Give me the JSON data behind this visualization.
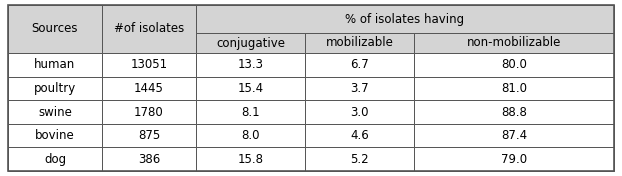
{
  "header_top": "% of isolates having",
  "header_left1": "Sources",
  "header_left2": "#of isolates",
  "sub_headers": [
    "conjugative",
    "mobilizable",
    "non-mobilizable"
  ],
  "rows": [
    [
      "human",
      "13051",
      "13.3",
      "6.7",
      "80.0"
    ],
    [
      "poultry",
      "1445",
      "15.4",
      "3.7",
      "81.0"
    ],
    [
      "swine",
      "1780",
      "8.1",
      "3.0",
      "88.8"
    ],
    [
      "bovine",
      "875",
      "8.0",
      "4.6",
      "87.4"
    ],
    [
      "dog",
      "386",
      "15.8",
      "5.2",
      "79.0"
    ]
  ],
  "background_color": "#ffffff",
  "header_bg": "#d4d4d4",
  "border_color": "#555555",
  "font_size": 8.5,
  "header_font_size": 8.5
}
